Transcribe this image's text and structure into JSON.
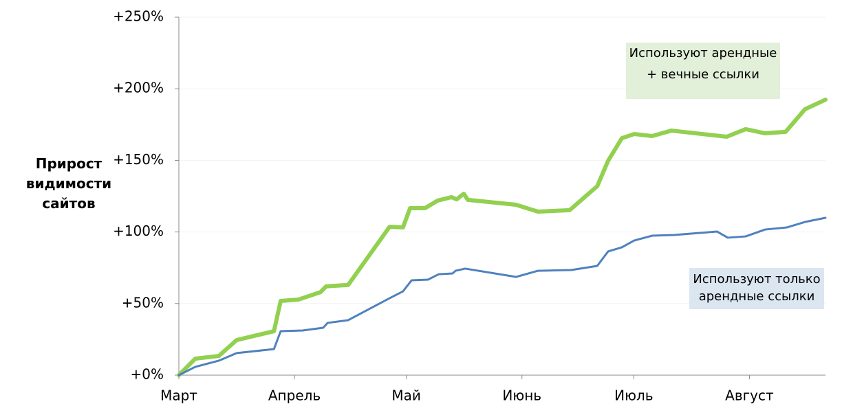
{
  "chart_data": {
    "type": "line",
    "y_label": "Прирост видимости сайтов",
    "xlim": [
      0,
      173.4
    ],
    "ylim": [
      0,
      250
    ],
    "xticks": [
      {
        "value": 0,
        "label": "Март"
      },
      {
        "value": 31,
        "label": "Апрель"
      },
      {
        "value": 61,
        "label": "Май"
      },
      {
        "value": 92,
        "label": "Июнь"
      },
      {
        "value": 122,
        "label": "Июль"
      },
      {
        "value": 153,
        "label": "Август"
      }
    ],
    "yticks": [
      {
        "value": 0,
        "label": "+0%"
      },
      {
        "value": 50,
        "label": "+50%"
      },
      {
        "value": 100,
        "label": "+100%"
      },
      {
        "value": 150,
        "label": "+150%"
      },
      {
        "value": 200,
        "label": "+200%"
      },
      {
        "value": 250,
        "label": "+250%"
      }
    ],
    "grid": true,
    "series": [
      {
        "name": "Используют арендные + вечные ссылки",
        "color": "#92d050",
        "width": 6,
        "x": [
          0,
          4.4,
          10.7,
          15.5,
          25.5,
          27.3,
          32.1,
          38,
          39.5,
          45.4,
          56.5,
          60.1,
          62,
          66,
          69.4,
          73.1,
          74.5,
          76.4,
          77.5,
          90.4,
          96.3,
          104.8,
          112.2,
          115.1,
          118.8,
          122.1,
          126.9,
          132.1,
          146.9,
          152,
          157.2,
          162.7,
          167.9,
          173.4
        ],
        "values": [
          0,
          11.5,
          13.4,
          24.5,
          30.7,
          51.8,
          52.8,
          58,
          62,
          63,
          103.6,
          103.2,
          116.6,
          116.6,
          121.9,
          124.3,
          122.8,
          126.7,
          122.4,
          119,
          114.2,
          115.2,
          132,
          149.7,
          165.5,
          168.4,
          167,
          170.8,
          166.5,
          171.8,
          168.9,
          169.9,
          185.7,
          192.4
        ]
      },
      {
        "name": "Используют только арендные ссылки",
        "color": "#4f81bd",
        "width": 3,
        "x": [
          0,
          4.4,
          10.7,
          15.5,
          25.5,
          27.3,
          33.2,
          38.7,
          39.9,
          45.4,
          56.5,
          60.1,
          62.4,
          66.8,
          69.7,
          73.4,
          74.2,
          76.8,
          90.4,
          96.3,
          105.2,
          112.2,
          115.1,
          118.8,
          122.1,
          126.9,
          132.8,
          144.3,
          147.2,
          152,
          157.2,
          163.1,
          167.9,
          173.4
        ],
        "values": [
          0,
          5.8,
          10.1,
          15.4,
          18.2,
          30.7,
          31.2,
          33.1,
          36.5,
          38.4,
          53.7,
          58.5,
          66.2,
          66.7,
          70.5,
          71,
          72.9,
          74.4,
          68.6,
          72.9,
          73.4,
          76.3,
          86.4,
          89.3,
          94,
          97.4,
          97.9,
          100.3,
          96,
          96.9,
          101.7,
          103.2,
          107,
          109.9
        ]
      }
    ]
  }
}
